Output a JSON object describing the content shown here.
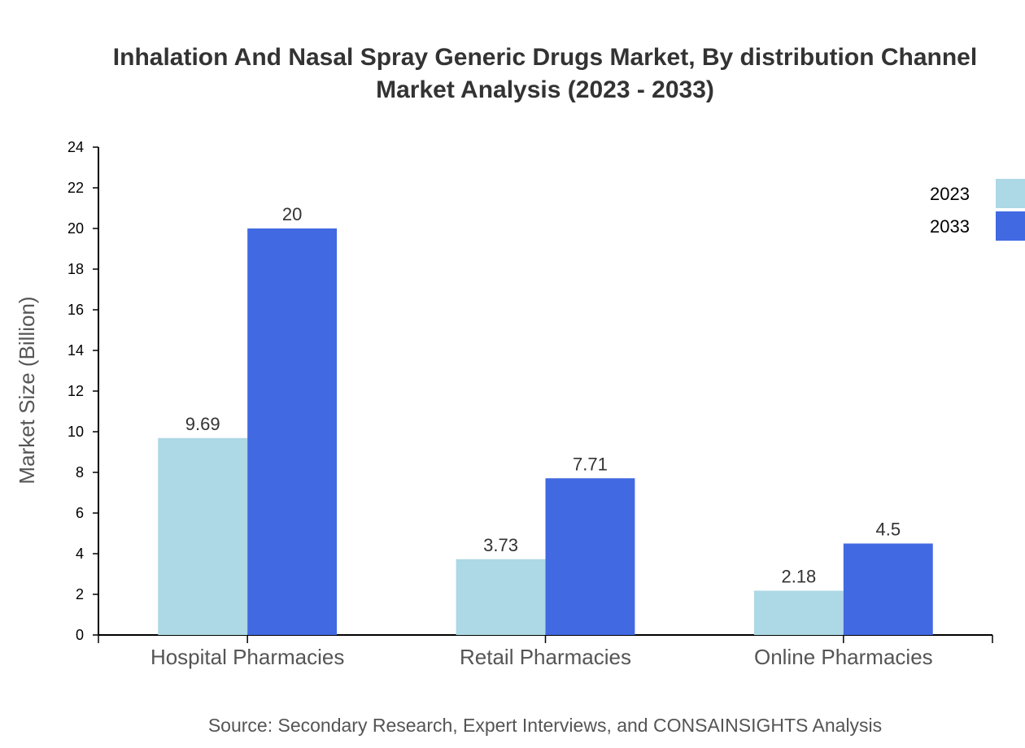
{
  "chart_data": {
    "type": "bar",
    "title": "Inhalation And Nasal Spray Generic Drugs Market, By distribution Channel",
    "subtitle": "Market Analysis (2023 - 2033)",
    "xlabel": "",
    "ylabel": "Market Size (Billion)",
    "ylim": [
      0,
      24
    ],
    "yticks": [
      0,
      2,
      4,
      6,
      8,
      10,
      12,
      14,
      16,
      18,
      20,
      22,
      24
    ],
    "categories": [
      "Hospital Pharmacies",
      "Retail Pharmacies",
      "Online Pharmacies"
    ],
    "series": [
      {
        "name": "2023",
        "values": [
          9.69,
          3.73,
          2.18
        ],
        "color": "#add8e6"
      },
      {
        "name": "2033",
        "values": [
          20,
          7.71,
          4.5
        ],
        "color": "#4169e1"
      }
    ],
    "grid": false,
    "legend": "top-right",
    "source": "Source: Secondary Research, Expert Interviews, and CONSAINSIGHTS Analysis"
  }
}
